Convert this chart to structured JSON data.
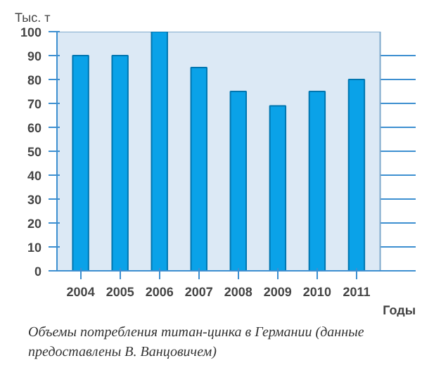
{
  "chart_data": {
    "type": "bar",
    "categories": [
      "2004",
      "2005",
      "2006",
      "2007",
      "2008",
      "2009",
      "2010",
      "2011"
    ],
    "values": [
      90,
      90,
      100,
      85,
      75,
      69,
      75,
      80
    ],
    "color": "#0aa2e8",
    "ylabel": "Тыс. т",
    "xlabel": "Годы",
    "ylim": [
      0,
      100
    ],
    "yticks": [
      0,
      10,
      20,
      30,
      40,
      50,
      60,
      70,
      80,
      90,
      100
    ],
    "grid": "y",
    "annotations": [
      "Объемы потребления титан-цинка в Германии (данные предоставлены В. Ванцовичем)"
    ]
  }
}
